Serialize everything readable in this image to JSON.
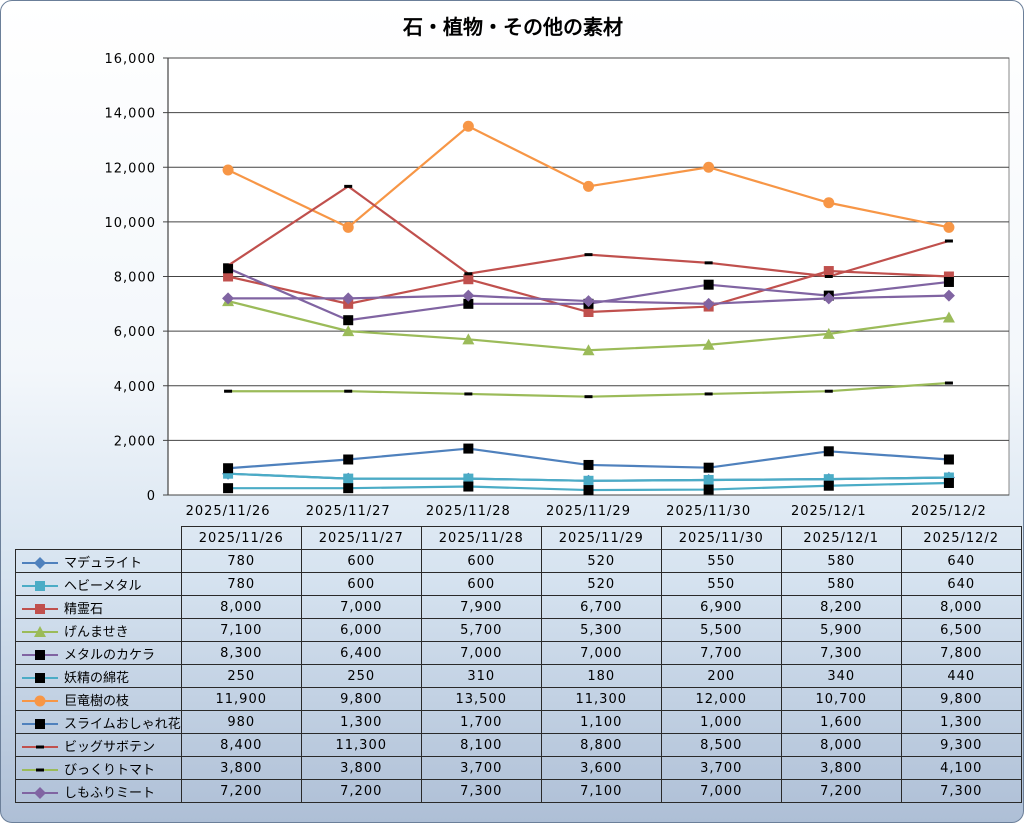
{
  "chart_data": {
    "type": "line",
    "title": "石・植物・その他の素材",
    "categories": [
      "2025/11/26",
      "2025/11/27",
      "2025/11/28",
      "2025/11/29",
      "2025/11/30",
      "2025/12/1",
      "2025/12/2"
    ],
    "ylim": [
      0,
      16000
    ],
    "yticks": [
      "0",
      "2,000",
      "4,000",
      "6,000",
      "8,000",
      "10,000",
      "12,000",
      "14,000",
      "16,000"
    ],
    "grid": true,
    "legend": "data-table",
    "series": [
      {
        "name": "マデュライト",
        "color": "#4f81bd",
        "marker": "diamond",
        "values": [
          780,
          600,
          600,
          520,
          550,
          580,
          640
        ],
        "labels": [
          "780",
          "600",
          "600",
          "520",
          "550",
          "580",
          "640"
        ]
      },
      {
        "name": "ヘビーメタル",
        "color": "#4bacc6",
        "marker": "square",
        "values": [
          780,
          600,
          600,
          520,
          550,
          580,
          640
        ],
        "labels": [
          "780",
          "600",
          "600",
          "520",
          "550",
          "580",
          "640"
        ]
      },
      {
        "name": "精霊石",
        "color": "#c0504d",
        "marker": "square",
        "values": [
          8000,
          7000,
          7900,
          6700,
          6900,
          8200,
          8000
        ],
        "labels": [
          "8,000",
          "7,000",
          "7,900",
          "6,700",
          "6,900",
          "8,200",
          "8,000"
        ]
      },
      {
        "name": "げんませき",
        "color": "#9bbb59",
        "marker": "triangle",
        "values": [
          7100,
          6000,
          5700,
          5300,
          5500,
          5900,
          6500
        ],
        "labels": [
          "7,100",
          "6,000",
          "5,700",
          "5,300",
          "5,500",
          "5,900",
          "6,500"
        ]
      },
      {
        "name": "メタルのカケラ",
        "color": "#8064a2",
        "marker": "blacksquare",
        "values": [
          8300,
          6400,
          7000,
          7000,
          7700,
          7300,
          7800
        ],
        "labels": [
          "8,300",
          "6,400",
          "7,000",
          "7,000",
          "7,700",
          "7,300",
          "7,800"
        ]
      },
      {
        "name": "妖精の綿花",
        "color": "#4bacc6",
        "marker": "blacksquare",
        "values": [
          250,
          250,
          310,
          180,
          200,
          340,
          440
        ],
        "labels": [
          "250",
          "250",
          "310",
          "180",
          "200",
          "340",
          "440"
        ]
      },
      {
        "name": "巨竜樹の枝",
        "color": "#f79646",
        "marker": "circle",
        "values": [
          11900,
          9800,
          13500,
          11300,
          12000,
          10700,
          9800
        ],
        "labels": [
          "11,900",
          "9,800",
          "13,500",
          "11,300",
          "12,000",
          "10,700",
          "9,800"
        ]
      },
      {
        "name": "スライムおしゃれ花",
        "color": "#4f81bd",
        "marker": "blacksquare",
        "values": [
          980,
          1300,
          1700,
          1100,
          1000,
          1600,
          1300
        ],
        "labels": [
          "980",
          "1,300",
          "1,700",
          "1,100",
          "1,000",
          "1,600",
          "1,300"
        ]
      },
      {
        "name": "ビッグサボテン",
        "color": "#c0504d",
        "marker": "dash",
        "values": [
          8400,
          11300,
          8100,
          8800,
          8500,
          8000,
          9300
        ],
        "labels": [
          "8,400",
          "11,300",
          "8,100",
          "8,800",
          "8,500",
          "8,000",
          "9,300"
        ]
      },
      {
        "name": "びっくりトマト",
        "color": "#9bbb59",
        "marker": "dash",
        "values": [
          3800,
          3800,
          3700,
          3600,
          3700,
          3800,
          4100
        ],
        "labels": [
          "3,800",
          "3,800",
          "3,700",
          "3,600",
          "3,700",
          "3,800",
          "4,100"
        ]
      },
      {
        "name": "しもふりミート",
        "color": "#8064a2",
        "marker": "diamond",
        "values": [
          7200,
          7200,
          7300,
          7100,
          7000,
          7200,
          7300
        ],
        "labels": [
          "7,200",
          "7,200",
          "7,300",
          "7,100",
          "7,000",
          "7,200",
          "7,300"
        ]
      }
    ]
  }
}
